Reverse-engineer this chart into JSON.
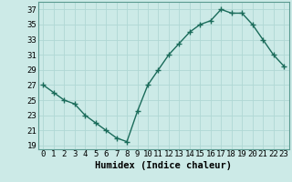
{
  "x": [
    0,
    1,
    2,
    3,
    4,
    5,
    6,
    7,
    8,
    9,
    10,
    11,
    12,
    13,
    14,
    15,
    16,
    17,
    18,
    19,
    20,
    21,
    22,
    23
  ],
  "y": [
    27,
    26,
    25,
    24.5,
    23,
    22,
    21,
    20,
    19.5,
    23.5,
    27,
    29,
    31,
    32.5,
    34,
    35,
    35.5,
    37,
    36.5,
    36.5,
    35,
    33,
    31,
    29.5
  ],
  "line_color": "#1a6b5a",
  "marker": "+",
  "marker_size": 4,
  "bg_color": "#cceae7",
  "grid_color": "#b0d8d4",
  "xlabel": "Humidex (Indice chaleur)",
  "xlim": [
    -0.5,
    23.5
  ],
  "ylim": [
    18.5,
    38
  ],
  "yticks": [
    19,
    21,
    23,
    25,
    27,
    29,
    31,
    33,
    35,
    37
  ],
  "xticks": [
    0,
    1,
    2,
    3,
    4,
    5,
    6,
    7,
    8,
    9,
    10,
    11,
    12,
    13,
    14,
    15,
    16,
    17,
    18,
    19,
    20,
    21,
    22,
    23
  ],
  "tick_fontsize": 6.5,
  "xlabel_fontsize": 7.5,
  "line_width": 1.0,
  "marker_edge_width": 1.0
}
